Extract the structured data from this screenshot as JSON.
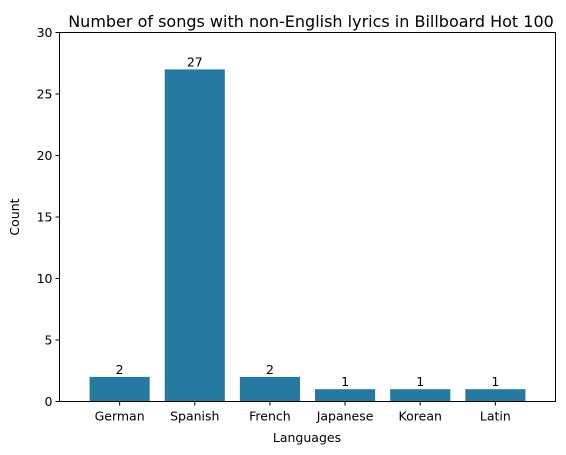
{
  "chart_data": {
    "type": "bar",
    "title": "Number of songs with non-English lyrics in Billboard Hot 100",
    "xlabel": "Languages",
    "ylabel": "Count",
    "categories": [
      "German",
      "Spanish",
      "French",
      "Japanese",
      "Korean",
      "Latin"
    ],
    "values": [
      2,
      27,
      2,
      1,
      1,
      1
    ],
    "data_labels": [
      "2",
      "27",
      "2",
      "1",
      "1",
      "1"
    ],
    "ylim": [
      0,
      30
    ],
    "yticks": [
      0,
      5,
      10,
      15,
      20,
      25,
      30
    ],
    "grid": false,
    "legend": "none",
    "bar_color": "#2679a0"
  }
}
